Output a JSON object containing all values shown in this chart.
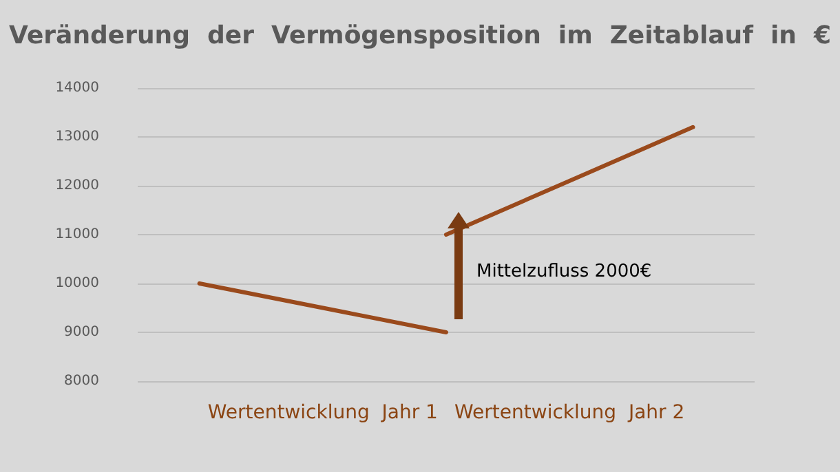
{
  "chart_data": {
    "type": "line",
    "title": "Veränderung  der  Vermögensposition  im  Zeitablauf  in  €",
    "categories": [
      null,
      "Wertentwicklung  Jahr 1",
      null,
      "Wertentwicklung  Jahr 2",
      null
    ],
    "ylim": [
      8000,
      14000
    ],
    "yticks": [
      8000,
      9000,
      10000,
      11000,
      12000,
      13000,
      14000
    ],
    "series": [
      {
        "color": "#9a4a1c",
        "values": [
          10000,
          null,
          9000,
          null,
          null
        ]
      },
      {
        "color": "#9a4a1c",
        "values": [
          null,
          null,
          11000,
          null,
          13200
        ]
      }
    ],
    "annotations": [
      "Mittelzufluss 2000€"
    ],
    "grid": "y",
    "marker": "none",
    "line_style": "solid"
  }
}
